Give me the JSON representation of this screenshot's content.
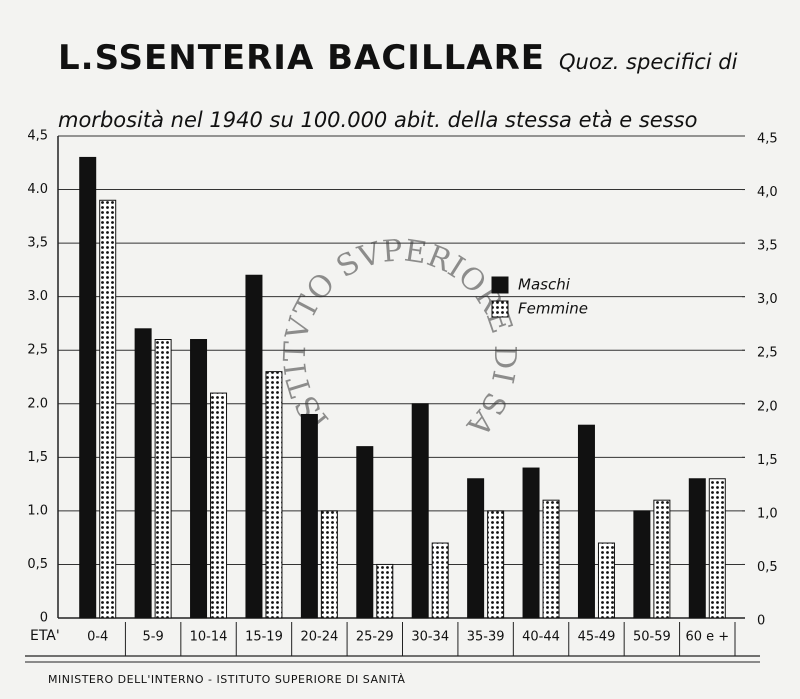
{
  "chart_data": {
    "type": "bar",
    "title": "L.SSENTERIA BACILLARE",
    "subtitle": "Quoz. specifici di morbosità nel 1940 su 100.000 abit. della stessa età e sesso",
    "x_label": "ETA'",
    "categories": [
      "0-4",
      "5-9",
      "10-14",
      "15-19",
      "20-24",
      "25-29",
      "30-34",
      "35-39",
      "40-44",
      "45-49",
      "50-59",
      "60 e +"
    ],
    "series": [
      {
        "name": "Maschi",
        "color": "#111111",
        "values": [
          4.3,
          2.7,
          2.6,
          3.2,
          1.9,
          1.6,
          2.0,
          1.3,
          1.4,
          1.8,
          1.0,
          1.3
        ]
      },
      {
        "name": "Femmine",
        "color": "#ffffff",
        "pattern": "dots",
        "values": [
          3.9,
          2.6,
          2.1,
          2.3,
          1.0,
          0.5,
          0.7,
          1.0,
          1.1,
          0.7,
          1.1,
          1.3
        ]
      }
    ],
    "ylim": [
      0,
      4.5
    ],
    "yticks": [
      0,
      {
        "value": 0.5,
        "label": "0,5"
      },
      {
        "value": 1,
        "label": "1.0"
      },
      {
        "value": 1.5,
        "label": "1,5"
      },
      {
        "value": 2,
        "label": "2.0"
      },
      {
        "value": 2.5,
        "label": "2,5"
      },
      {
        "value": 3,
        "label": "3.0"
      },
      {
        "value": 3.5,
        "label": "3,5"
      },
      {
        "value": 4,
        "label": "4.0"
      },
      {
        "value": 4.5,
        "label": "4,5"
      }
    ],
    "y2lim": [
      0,
      4.5
    ],
    "y2ticks": [
      0,
      {
        "value": 0.5,
        "label": "0,5"
      },
      {
        "value": 1,
        "label": "1,0"
      },
      {
        "value": 1.5,
        "label": "1,5"
      },
      {
        "value": 2,
        "label": "2,0"
      },
      {
        "value": 2.5,
        "label": "2,5"
      },
      {
        "value": 3,
        "label": "3,0"
      },
      {
        "value": 3.5,
        "label": "3,5"
      },
      {
        "value": 4,
        "label": "4,0"
      },
      {
        "value": 4.5,
        "label": "4,5"
      }
    ],
    "grid": true,
    "watermark": "ISTITVTO SVPERIORE DI SANITA",
    "footer": "MINISTERO DELL'INTERNO - ISTITUTO SUPERIORE DI SANITÀ"
  }
}
